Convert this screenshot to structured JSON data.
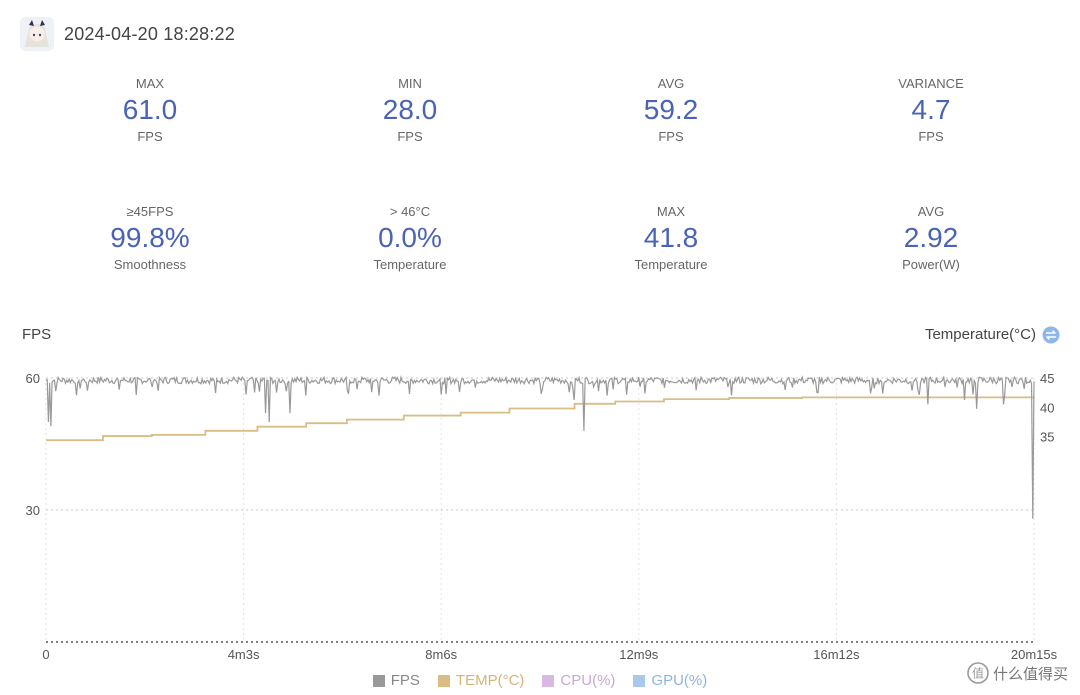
{
  "header": {
    "timestamp": "2024-04-20 18:28:22"
  },
  "stats": [
    {
      "label": "MAX",
      "value": "61.0",
      "unit": "FPS"
    },
    {
      "label": "MIN",
      "value": "28.0",
      "unit": "FPS"
    },
    {
      "label": "AVG",
      "value": "59.2",
      "unit": "FPS"
    },
    {
      "label": "VARIANCE",
      "value": "4.7",
      "unit": "FPS"
    },
    {
      "label": "≥45FPS",
      "value": "99.8%",
      "unit": "Smoothness"
    },
    {
      "label": "> 46°C",
      "value": "0.0%",
      "unit": "Temperature"
    },
    {
      "label": "MAX",
      "value": "41.8",
      "unit": "Temperature"
    },
    {
      "label": "AVG",
      "value": "2.92",
      "unit": "Power(W)"
    }
  ],
  "chart_data": {
    "type": "line",
    "ylabel": "FPS",
    "ylabel_right": "Temperature(°C)",
    "y_ticks": [
      "60",
      "30"
    ],
    "ylim": [
      0,
      60
    ],
    "y2_ticks": [
      "45",
      "40",
      "35"
    ],
    "y2lim": [
      0,
      45
    ],
    "x_ticks": [
      "0",
      "4m3s",
      "8m6s",
      "12m9s",
      "16m12s",
      "20m15s"
    ],
    "x_tick_seconds": [
      0,
      243,
      486,
      729,
      972,
      1215
    ],
    "xlim_seconds": [
      0,
      1215
    ],
    "grid": true,
    "legend_position": "bottom",
    "series": [
      {
        "name": "FPS",
        "color": "#999999",
        "baseline": 59.5,
        "dips": [
          [
            3,
            50
          ],
          [
            6,
            49
          ],
          [
            12,
            57
          ],
          [
            40,
            36
          ],
          [
            52,
            55
          ],
          [
            178,
            52
          ],
          [
            270,
            52
          ],
          [
            275,
            50
          ],
          [
            300,
            52
          ],
          [
            320,
            56
          ],
          [
            410,
            56
          ],
          [
            490,
            57
          ],
          [
            640,
            53
          ],
          [
            650,
            55
          ],
          [
            662,
            48
          ],
          [
            664,
            45
          ],
          [
            670,
            52
          ],
          [
            680,
            57
          ],
          [
            690,
            56
          ],
          [
            850,
            56
          ],
          [
            1085,
            54
          ],
          [
            1130,
            55
          ],
          [
            1145,
            53
          ],
          [
            1178,
            54
          ],
          [
            1210,
            56
          ],
          [
            1214,
            28
          ]
        ]
      },
      {
        "name": "TEMP(°C)",
        "color": "#d8bd85",
        "axis": "right",
        "steps": [
          [
            0,
            34.4
          ],
          [
            36,
            34.4
          ],
          [
            70,
            35.1
          ],
          [
            130,
            35.3
          ],
          [
            196,
            36.0
          ],
          [
            260,
            36.7
          ],
          [
            320,
            37.3
          ],
          [
            370,
            37.9
          ],
          [
            440,
            38.6
          ],
          [
            510,
            39.1
          ],
          [
            570,
            39.8
          ],
          [
            650,
            40.6
          ],
          [
            700,
            41.0
          ],
          [
            760,
            41.4
          ],
          [
            840,
            41.6
          ],
          [
            930,
            41.7
          ],
          [
            1215,
            41.8
          ]
        ]
      },
      {
        "name": "CPU(%)",
        "color": "#d9b8e2"
      },
      {
        "name": "GPU(%)",
        "color": "#a9c8ea"
      }
    ]
  },
  "watermark": {
    "text": "什么值得买"
  }
}
